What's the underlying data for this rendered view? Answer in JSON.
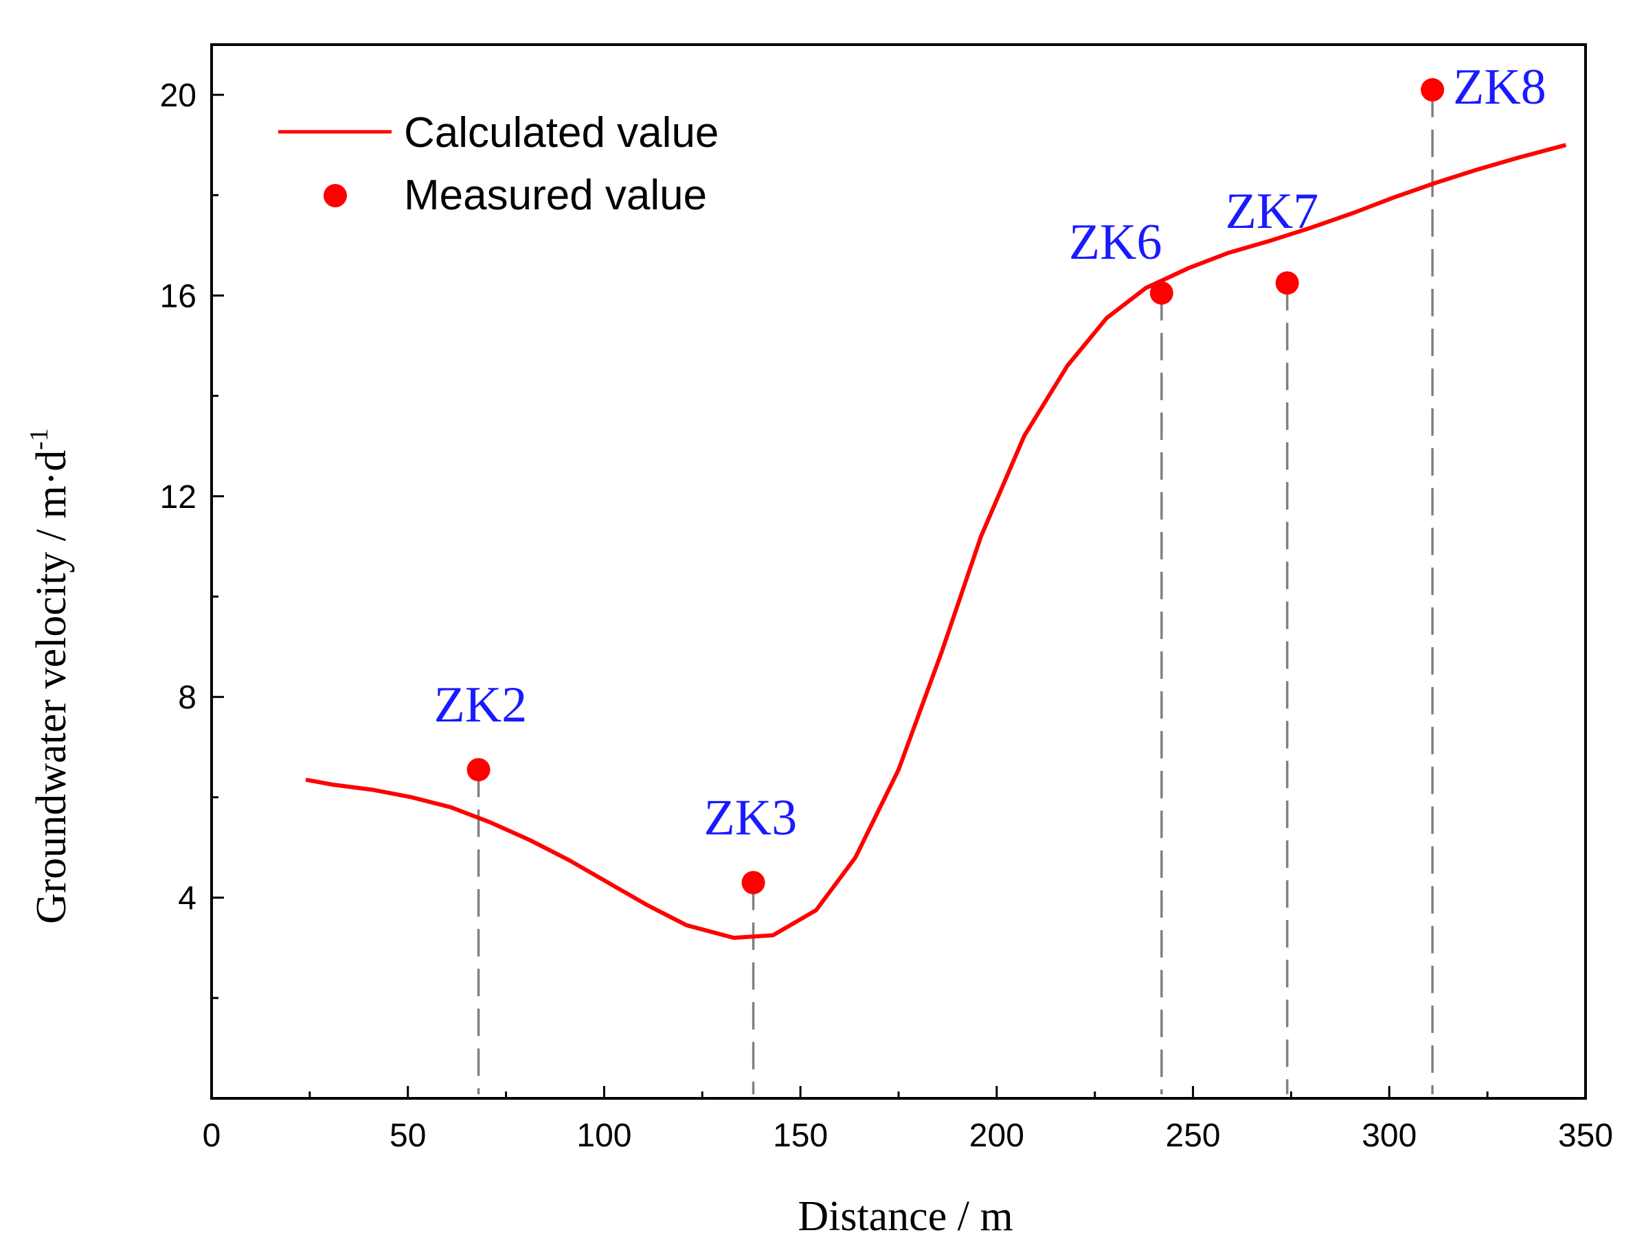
{
  "colors": {
    "calculated": "#ff0000",
    "measured": "#ff0000",
    "well_label": "#1a1aff",
    "guide": "#808080",
    "axis": "#000000"
  },
  "chart_data": {
    "type": "line",
    "title": "",
    "xlabel": "Distance / m",
    "ylabel": "Groundwater velocity / m·d",
    "ylabel_superscript": "-1",
    "xlim": [
      0,
      350
    ],
    "ylim": [
      0,
      21
    ],
    "xticks": [
      0,
      50,
      100,
      150,
      200,
      250,
      300,
      350
    ],
    "yticks": [
      4,
      8,
      12,
      16,
      20
    ],
    "y_minor_ticks": [
      2,
      6,
      10,
      14,
      18
    ],
    "grid": false,
    "legend": {
      "position": "top-left",
      "entries": [
        {
          "label": "Calculated value",
          "kind": "line"
        },
        {
          "label": "Measured value",
          "kind": "marker"
        }
      ]
    },
    "series": [
      {
        "name": "Calculated value",
        "kind": "line",
        "x": [
          24,
          31,
          41,
          51,
          61,
          71,
          81,
          91,
          101,
          111,
          121,
          133,
          143,
          154,
          164,
          175,
          186,
          196,
          207,
          218,
          228,
          238,
          249,
          259,
          270,
          280,
          291,
          301,
          312,
          322,
          333,
          345
        ],
        "y": [
          6.35,
          6.25,
          6.15,
          6.0,
          5.8,
          5.5,
          5.15,
          4.75,
          4.3,
          3.85,
          3.45,
          3.2,
          3.25,
          3.75,
          4.8,
          6.55,
          8.9,
          11.2,
          13.2,
          14.6,
          15.55,
          16.15,
          16.55,
          16.85,
          17.1,
          17.35,
          17.65,
          17.95,
          18.25,
          18.5,
          18.75,
          19.0
        ]
      },
      {
        "name": "Measured value",
        "kind": "scatter",
        "points": [
          {
            "well": "ZK2",
            "x": 68,
            "y": 6.55
          },
          {
            "well": "ZK3",
            "x": 138,
            "y": 4.3
          },
          {
            "well": "ZK6",
            "x": 242,
            "y": 16.05
          },
          {
            "well": "ZK7",
            "x": 274,
            "y": 16.25
          },
          {
            "well": "ZK8",
            "x": 311,
            "y": 20.1
          }
        ]
      }
    ]
  }
}
